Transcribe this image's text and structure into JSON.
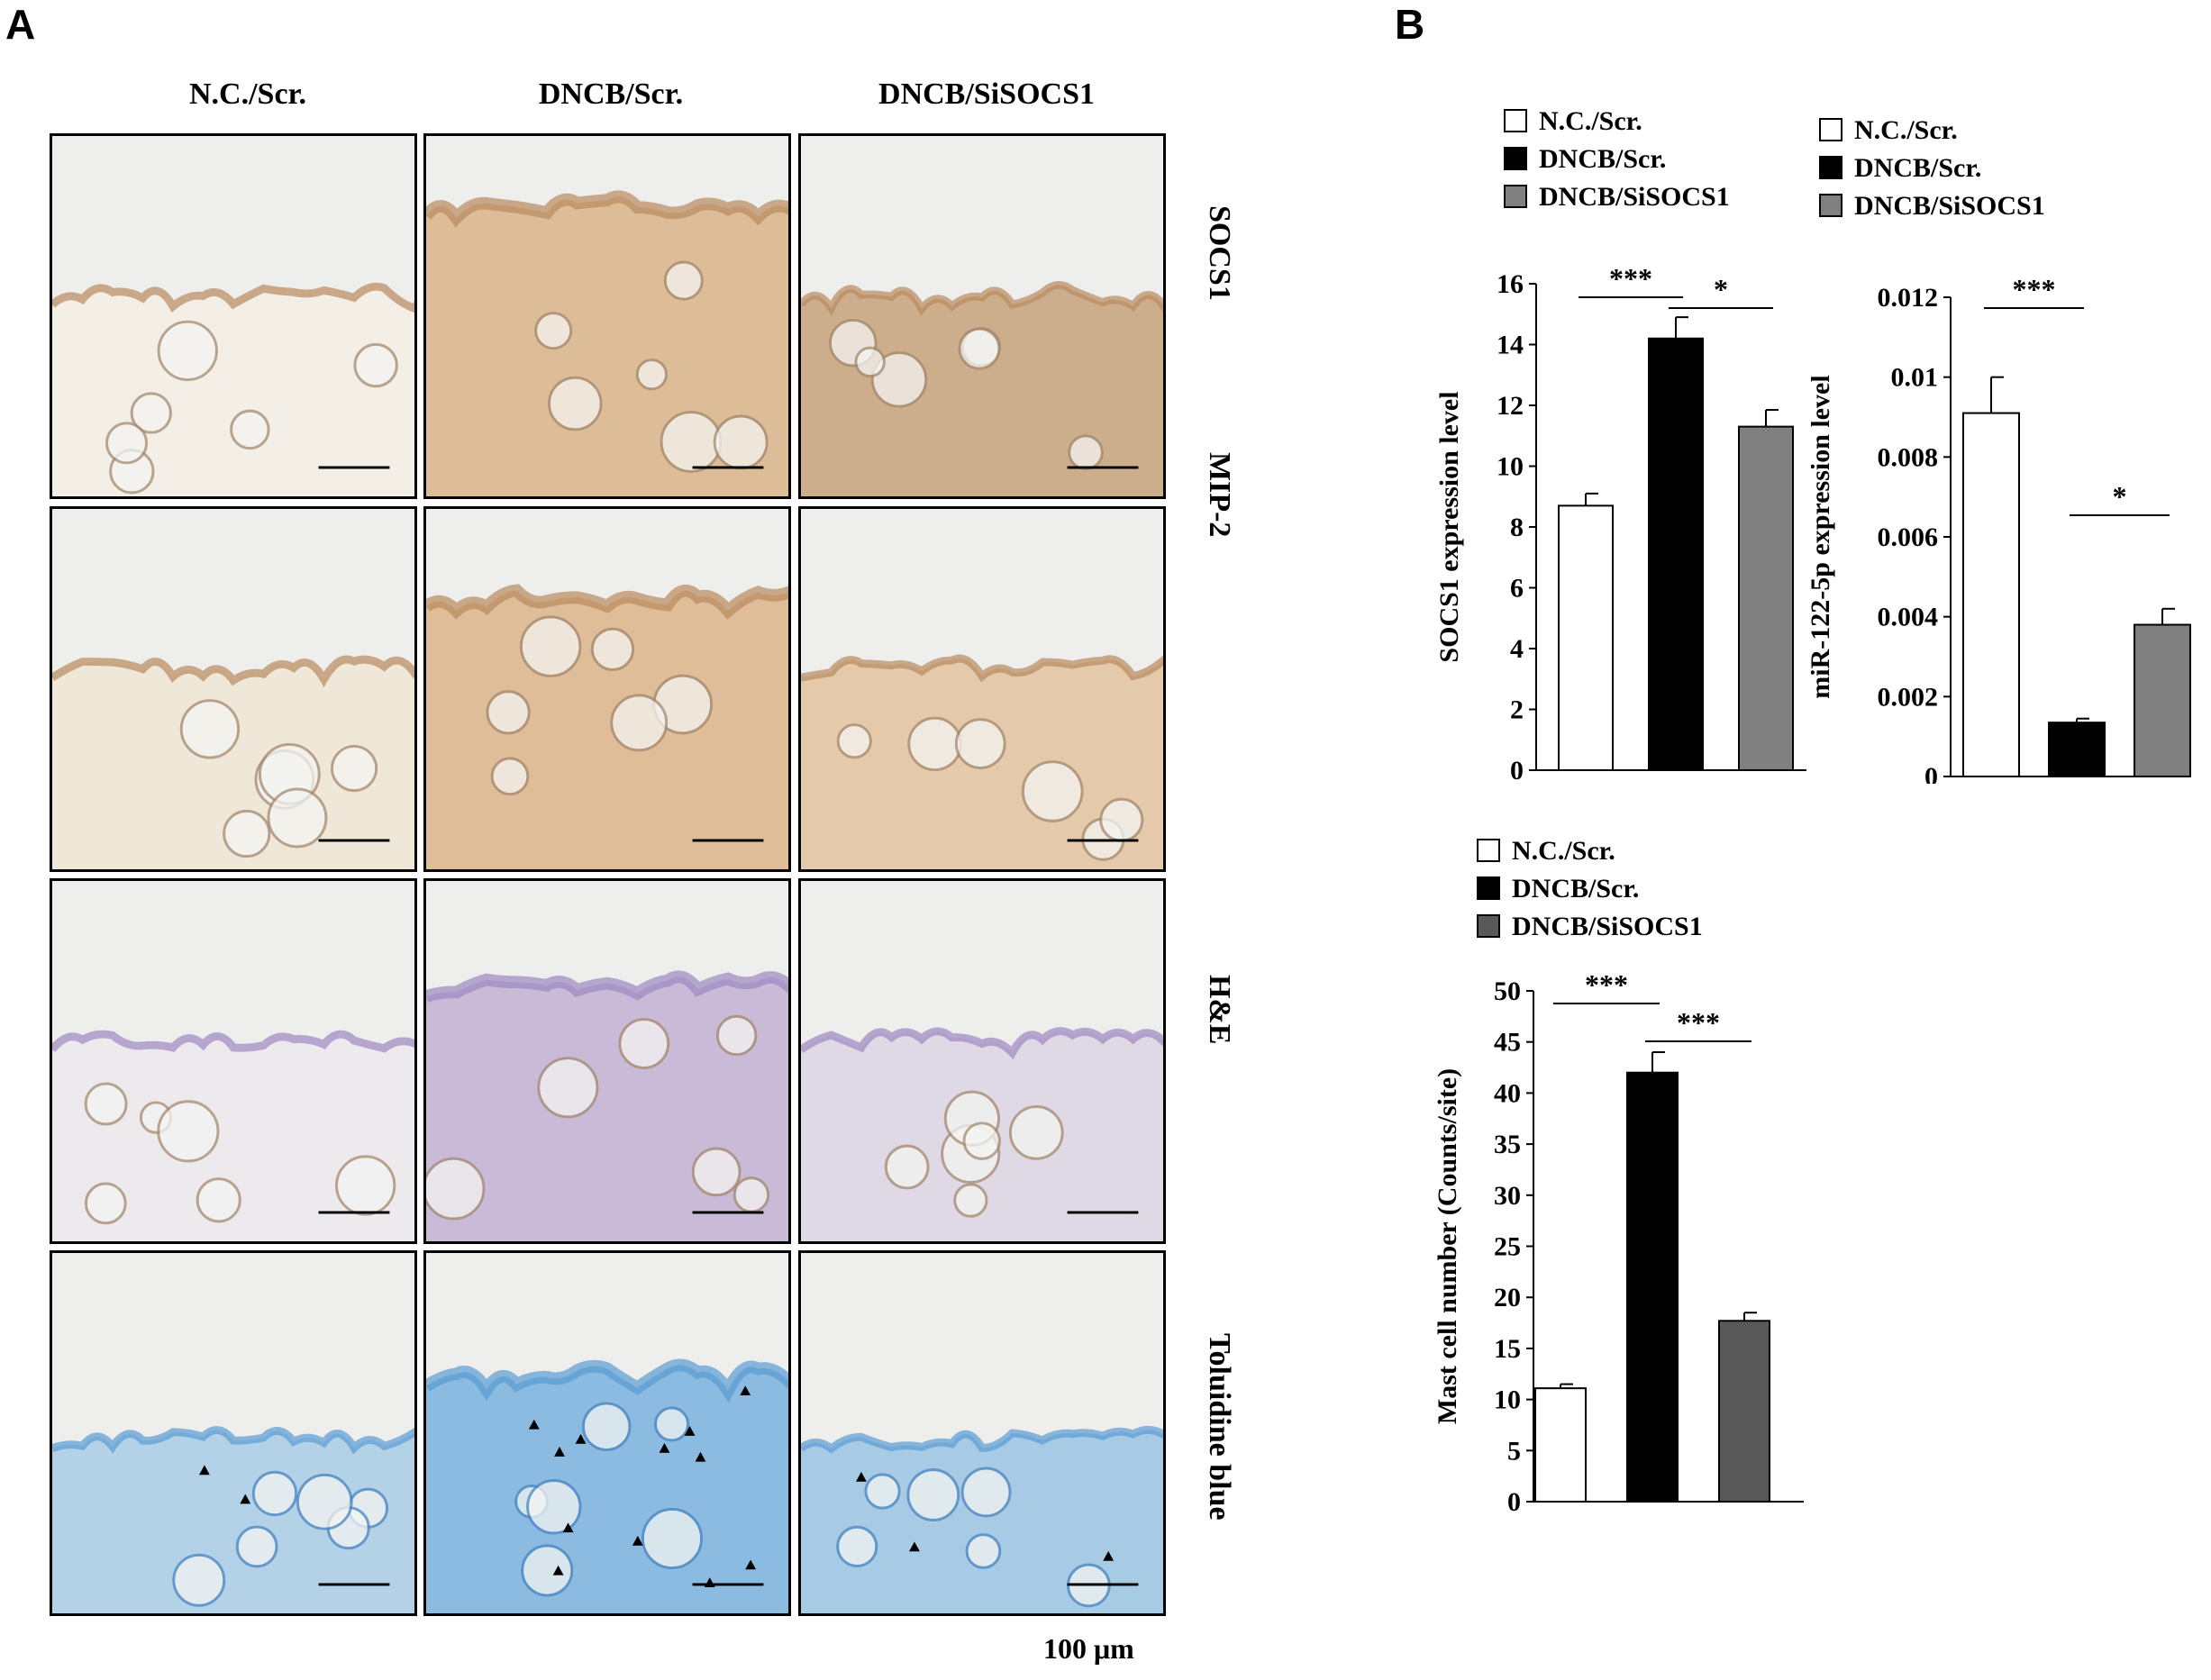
{
  "panel_a": {
    "letter": "A",
    "columns": [
      "N.C./Scr.",
      "DNCB/Scr.",
      "DNCB/SiSOCS1"
    ],
    "rows": [
      "SOCS1",
      "MIP-2",
      "H&E",
      "Toluidine blue"
    ],
    "scale_label": "100 μm",
    "stain_colors": {
      "SOCS1": [
        "#f3efe6",
        "#d9b48a",
        "#c5a27c"
      ],
      "MIP-2": [
        "#efe6d6",
        "#dcb48b",
        "#e2c3a0"
      ],
      "H&E": [
        "#ece9ee",
        "#c2b2d4",
        "#dcd5e4"
      ],
      "Toluidine blue": [
        "#a9cde6",
        "#79b1de",
        "#9ac3e4"
      ]
    }
  },
  "panel_b": {
    "letter": "B"
  },
  "chart_data": [
    {
      "type": "bar",
      "categories": [
        "N.C./Scr.",
        "DNCB/Scr.",
        "DNCB/SiSOCS1"
      ],
      "values": [
        8.7,
        14.2,
        11.3
      ],
      "errors": [
        0.4,
        0.7,
        0.55
      ],
      "colors": [
        "#ffffff",
        "#000000",
        "#808080"
      ],
      "legend": [
        "N.C./Scr.",
        "DNCB/Scr.",
        "DNCB/SiSOCS1"
      ],
      "ylabel": "SOCS1 expression level",
      "ylim": [
        0,
        16
      ],
      "yticks": [
        "0",
        "2",
        "4",
        "6",
        "8",
        "10",
        "12",
        "14",
        "16"
      ],
      "significance": [
        {
          "from": 0,
          "to": 1,
          "label": "***"
        },
        {
          "from": 1,
          "to": 2,
          "label": "*"
        }
      ]
    },
    {
      "type": "bar",
      "categories": [
        "N.C./Scr.",
        "DNCB/Scr.",
        "DNCB/SiSOCS1"
      ],
      "values": [
        0.0091,
        0.00135,
        0.0038
      ],
      "errors": [
        0.0009,
        0.0001,
        0.0004
      ],
      "colors": [
        "#ffffff",
        "#000000",
        "#808080"
      ],
      "legend": [
        "N.C./Scr.",
        "DNCB/Scr.",
        "DNCB/SiSOCS1"
      ],
      "ylabel": "miR-122-5p expression level",
      "ylim": [
        0,
        0.012
      ],
      "yticks": [
        "0",
        "0.002",
        "0.004",
        "0.006",
        "0.008",
        "0.01",
        "0.012"
      ],
      "significance": [
        {
          "from": 0,
          "to": 1,
          "label": "***"
        },
        {
          "from": 1,
          "to": 2,
          "label": "*"
        }
      ]
    },
    {
      "type": "bar",
      "categories": [
        "N.C./Scr.",
        "DNCB/Scr.",
        "DNCB/SiSOCS1"
      ],
      "values": [
        11.1,
        42.0,
        17.7
      ],
      "errors": [
        0.4,
        2.0,
        0.8
      ],
      "colors": [
        "#ffffff",
        "#000000",
        "#595959"
      ],
      "legend": [
        "N.C./Scr.",
        "DNCB/Scr.",
        "DNCB/SiSOCS1"
      ],
      "ylabel": "Mast cell number (Counts/site)",
      "ylim": [
        0,
        50
      ],
      "yticks": [
        "0",
        "5",
        "10",
        "15",
        "20",
        "25",
        "30",
        "35",
        "40",
        "45",
        "50"
      ],
      "significance": [
        {
          "from": 0,
          "to": 1,
          "label": "***"
        },
        {
          "from": 1,
          "to": 2,
          "label": "***"
        }
      ]
    }
  ]
}
